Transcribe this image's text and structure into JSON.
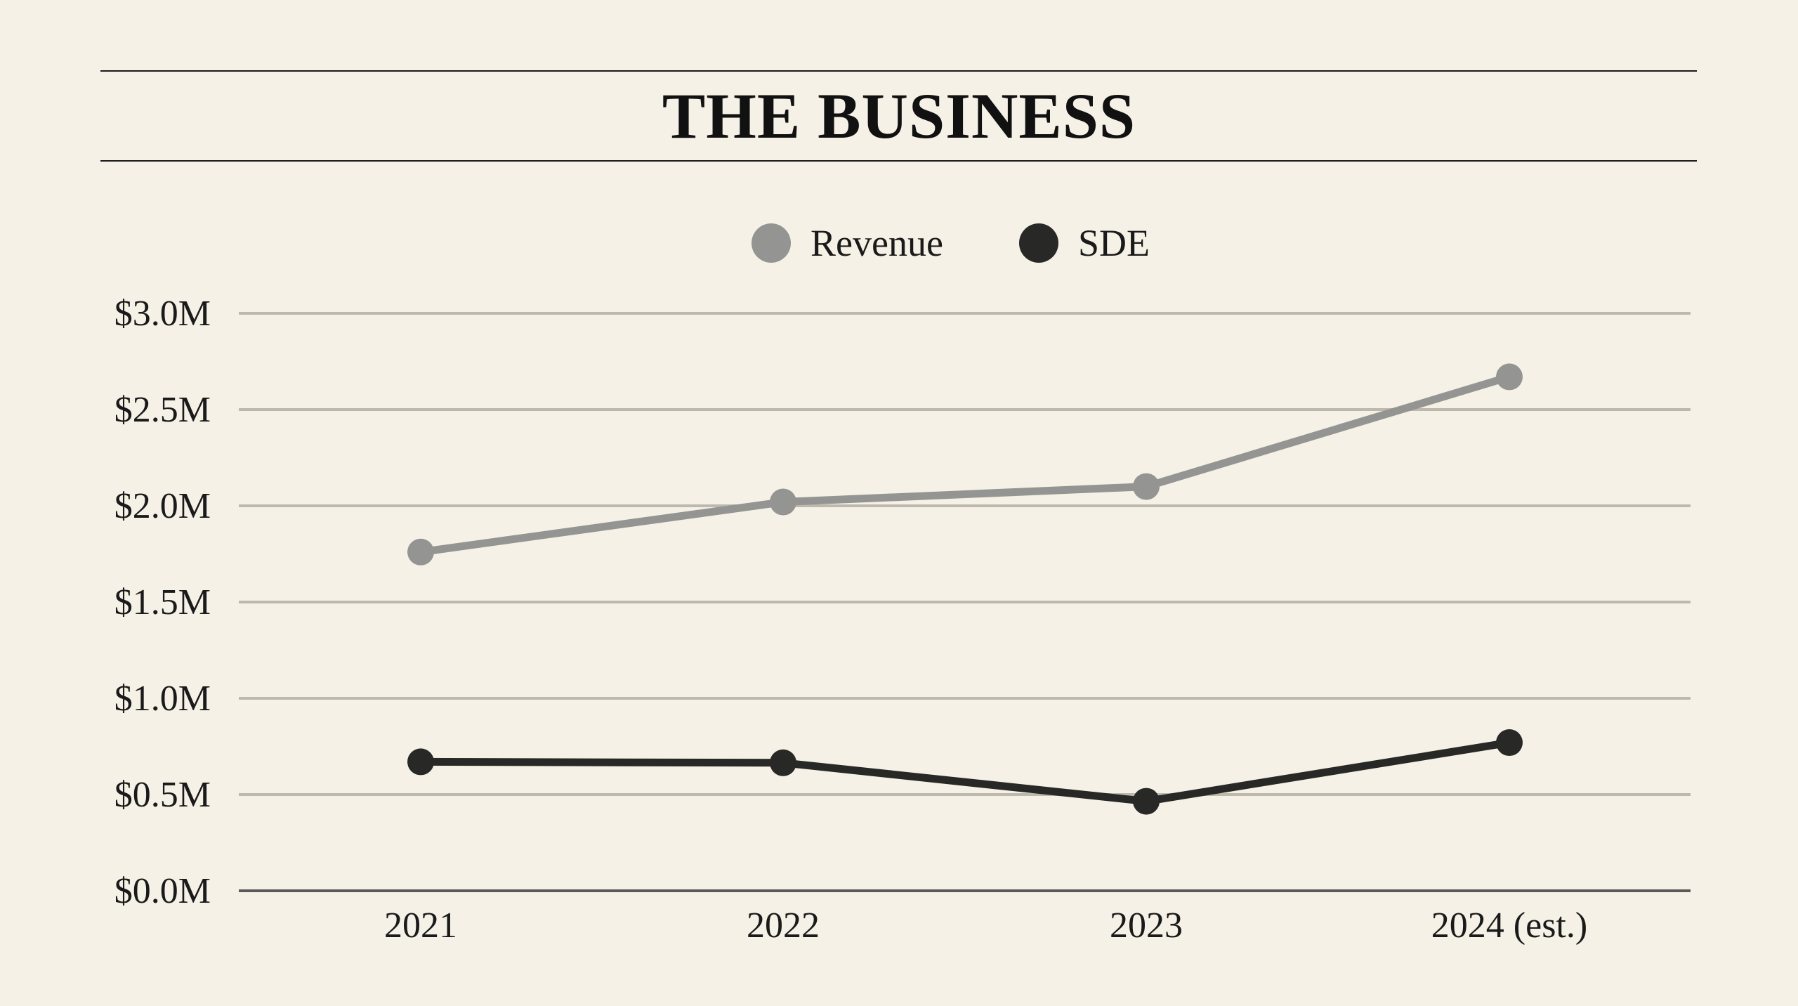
{
  "header": {
    "title": "THE BUSINESS"
  },
  "chart_data": {
    "type": "line",
    "title": "THE BUSINESS",
    "xlabel": "",
    "ylabel": "",
    "categories": [
      "2021",
      "2022",
      "2023",
      "2024 (est.)"
    ],
    "series": [
      {
        "name": "Revenue",
        "color": "#949592",
        "values": [
          1.76,
          2.02,
          2.1,
          2.67
        ]
      },
      {
        "name": "SDE",
        "color": "#282826",
        "values": [
          0.67,
          0.665,
          0.465,
          0.77
        ]
      }
    ],
    "ylim": [
      0,
      3.0
    ],
    "yticks": [
      0,
      0.5,
      1.0,
      1.5,
      2.0,
      2.5,
      3.0
    ],
    "ytick_labels": [
      "$0.0M",
      "$0.5M",
      "$1.0M",
      "$1.5M",
      "$2.0M",
      "$2.5M",
      "$3.0M"
    ],
    "grid": true,
    "legend_position": "top-center",
    "colors": {
      "background": "#f6f1e6",
      "grid": "#bdb9ad",
      "axis": "#5a5a58"
    }
  }
}
